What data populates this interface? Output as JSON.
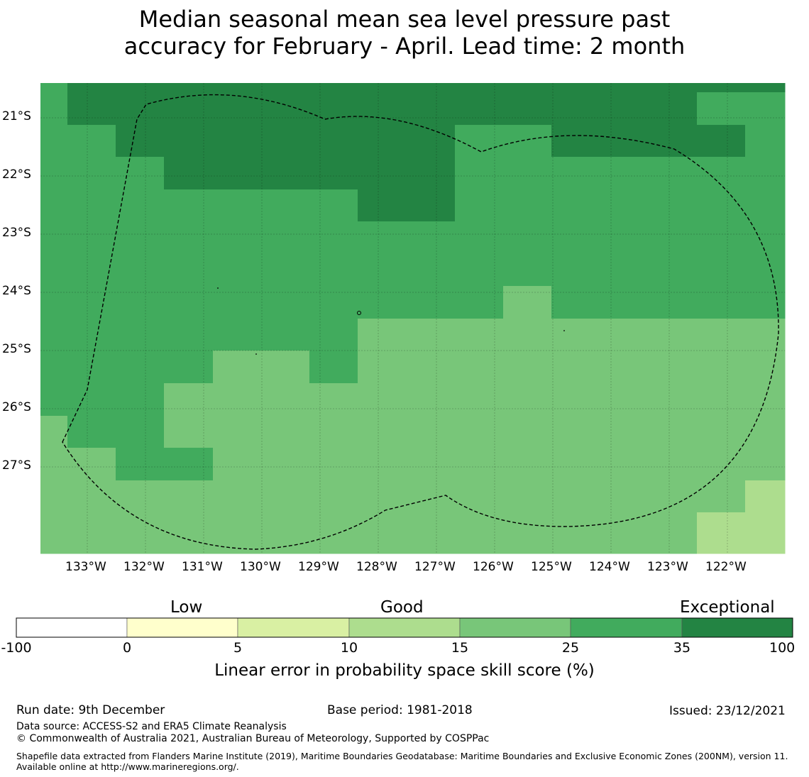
{
  "title": {
    "line1": "Median seasonal mean sea level pressure past",
    "line2": "accuracy for February - April. Lead time: 2 month"
  },
  "map": {
    "lat_labels": [
      "21°S",
      "22°S",
      "23°S",
      "24°S",
      "25°S",
      "26°S",
      "27°S"
    ],
    "lon_labels": [
      "133°W",
      "132°W",
      "131°W",
      "130°W",
      "129°W",
      "128°W",
      "127°W",
      "126°W",
      "125°W",
      "124°W",
      "123°W",
      "122°W"
    ],
    "category_colors": [
      "#ffffff",
      "#ffffcc",
      "#d9f0a3",
      "#addd8e",
      "#78c679",
      "#41ab5d",
      "#238443"
    ]
  },
  "colorbar": {
    "category_labels": [
      "Low",
      "Good",
      "Exceptional"
    ],
    "ticks": [
      "-100",
      "0",
      "5",
      "10",
      "15",
      "25",
      "35",
      "100"
    ],
    "colors": [
      "#ffffff",
      "#ffffcc",
      "#d9f0a3",
      "#addd8e",
      "#78c679",
      "#41ab5d",
      "#238443"
    ],
    "title": "Linear error in probability space skill score (%)"
  },
  "footer": {
    "run_date": "Run date: 9th December",
    "base_period": "Base period: 1981-2018",
    "issued": "Issued: 23/12/2021",
    "data_source": "Data source: ACCESS-S2 and ERA5 Climate Reanalysis",
    "copyright": "© Commonwealth of Australia 2021, Australian Bureau of Meteorology, Supported by COSPPac",
    "shapefile": "Shapefile data extracted from Flanders Marine Institute (2019), Maritime Boundaries Geodatabase: Maritime Boundaries and Exclusive Economic Zones (200NM), version 11. Available online at http://www.marineregions.org/."
  }
}
